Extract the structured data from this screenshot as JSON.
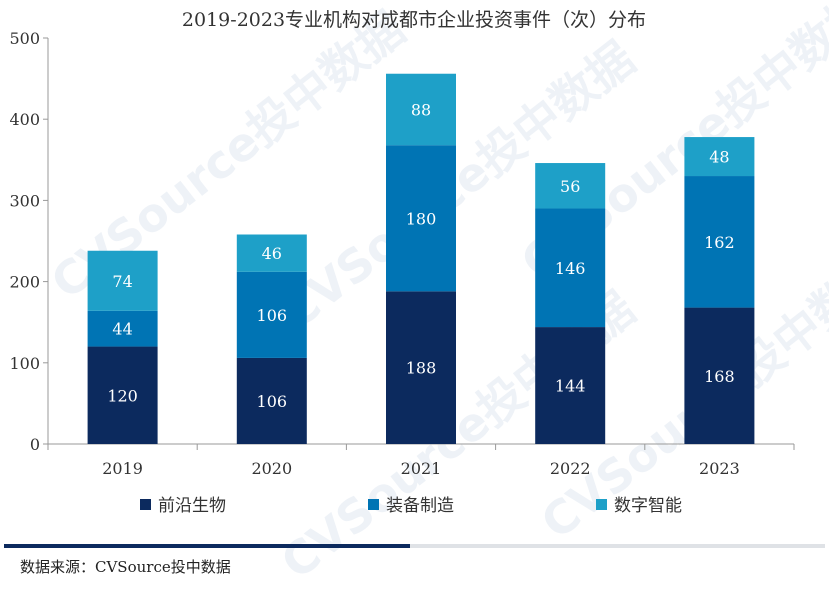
{
  "chart_data": {
    "type": "bar",
    "stacked": true,
    "title": "2019-2023专业机构对成都市企业投资事件（次）分布",
    "categories": [
      "2019",
      "2020",
      "2021",
      "2022",
      "2023"
    ],
    "series": [
      {
        "name": "前沿生物",
        "color": "#0c2a5e",
        "values": [
          120,
          106,
          188,
          144,
          168
        ]
      },
      {
        "name": "装备制造",
        "color": "#0074b4",
        "values": [
          44,
          106,
          180,
          146,
          162
        ]
      },
      {
        "name": "数字智能",
        "color": "#1ea0c8",
        "values": [
          74,
          46,
          88,
          56,
          48
        ]
      }
    ],
    "ylim": [
      0,
      500
    ],
    "yticks": [
      0,
      100,
      200,
      300,
      400,
      500
    ],
    "xlabel": "",
    "ylabel": "",
    "legend": "bottom"
  },
  "footer": {
    "source": "数据来源：CVSource投中数据",
    "bar_dark_color": "#0c2a5e",
    "bar_light_color": "#dfe2e6"
  },
  "watermark_text": "CVSource投中数据"
}
